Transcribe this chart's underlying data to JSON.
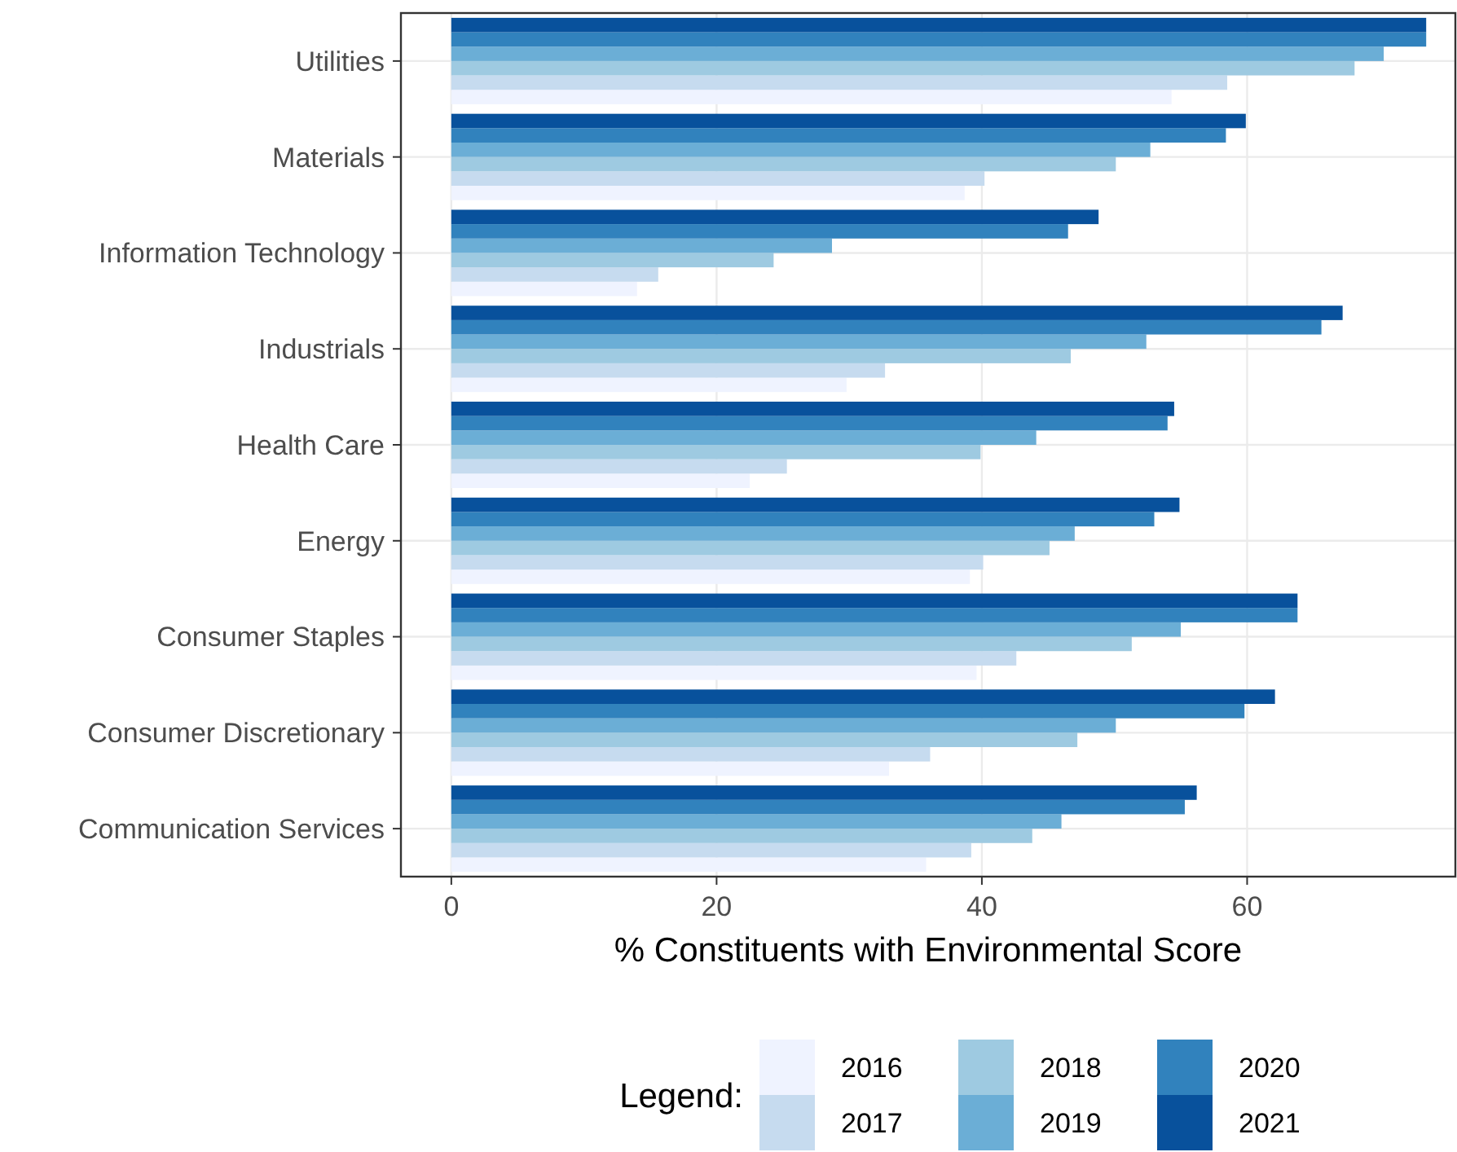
{
  "chart_data": {
    "type": "bar",
    "orientation": "horizontal",
    "xlabel": "% Constituents with Environmental Score",
    "legend_title": "Legend:",
    "legend": "bottom",
    "grid": true,
    "categories": [
      "Utilities",
      "Materials",
      "Information Technology",
      "Industrials",
      "Health Care",
      "Energy",
      "Consumer Staples",
      "Consumer Discretionary",
      "Communication Services"
    ],
    "xlim": [
      -3.8,
      75.7
    ],
    "xticks": [
      0,
      20,
      40,
      60
    ],
    "series": [
      {
        "name": "2016",
        "color": "#eff3ff",
        "values": [
          54.3,
          38.7,
          14.0,
          29.8,
          22.5,
          39.1,
          39.6,
          33.0,
          35.8
        ]
      },
      {
        "name": "2017",
        "color": "#c6dbef",
        "values": [
          58.5,
          40.2,
          15.6,
          32.7,
          25.3,
          40.1,
          42.6,
          36.1,
          39.2
        ]
      },
      {
        "name": "2018",
        "color": "#9ecae1",
        "values": [
          68.1,
          50.1,
          24.3,
          46.7,
          39.9,
          45.1,
          51.3,
          47.2,
          43.8
        ]
      },
      {
        "name": "2019",
        "color": "#6baed6",
        "values": [
          70.3,
          52.7,
          28.7,
          52.4,
          44.1,
          47.0,
          55.0,
          50.1,
          46.0
        ]
      },
      {
        "name": "2020",
        "color": "#3182bd",
        "values": [
          73.5,
          58.4,
          46.5,
          65.6,
          54.0,
          53.0,
          63.8,
          59.8,
          55.3
        ]
      },
      {
        "name": "2021",
        "color": "#08519c",
        "values": [
          73.5,
          59.9,
          48.8,
          67.2,
          54.5,
          54.9,
          63.8,
          62.1,
          56.2
        ]
      }
    ]
  }
}
